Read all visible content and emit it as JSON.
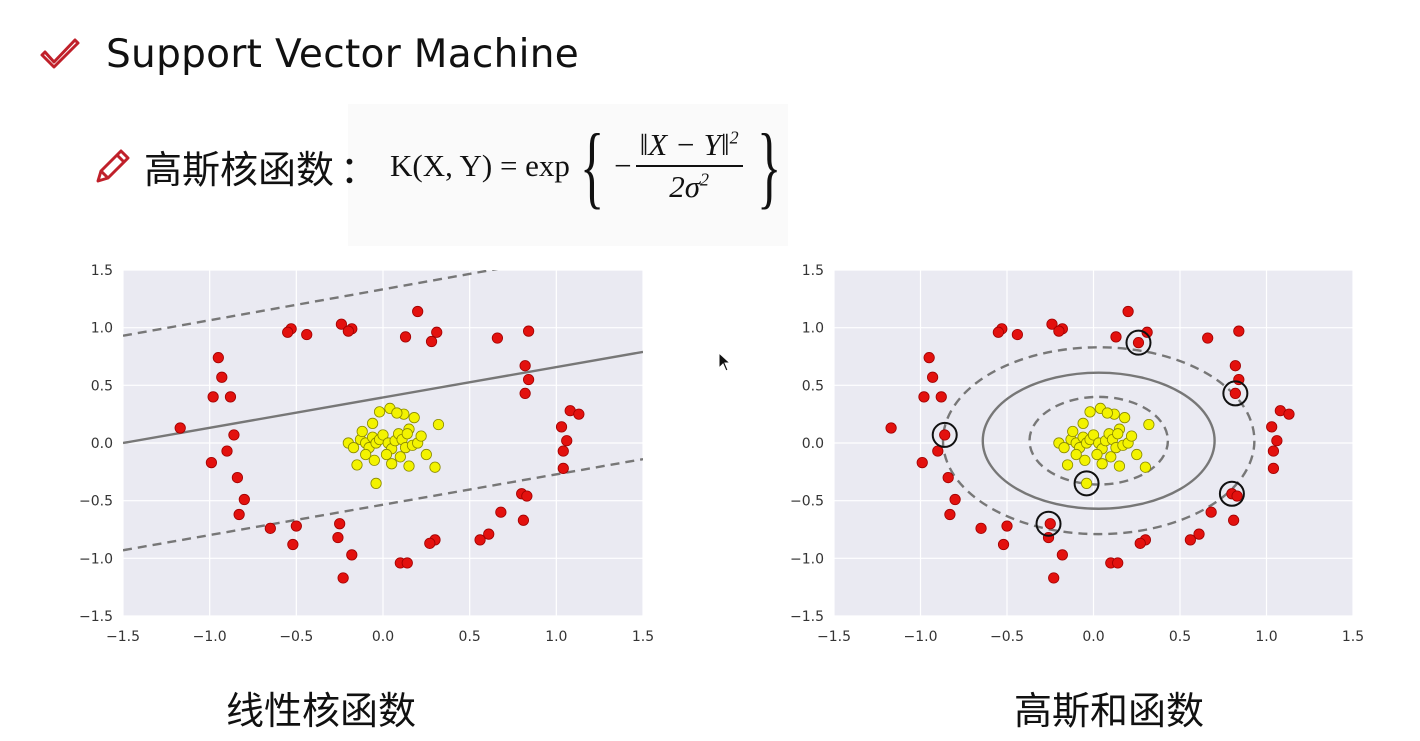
{
  "slide": {
    "title": "Support Vector Machine",
    "kernel_label": "高斯核函数",
    "colon": "：",
    "formula": {
      "lhs": "K(X, Y) = exp",
      "minus": "−",
      "numerator": "‖X − Y‖",
      "exponent": "2",
      "denominator": "2σ",
      "denominator_exponent": "2"
    },
    "icons": [
      "check-icon",
      "pencil-icon",
      "mouse-cursor-icon"
    ],
    "colors": {
      "accent": "#c0202a",
      "plot_bg": "#eaeaf2",
      "red_point": "#e3110e",
      "yellow_point": "#f3f300"
    }
  },
  "chart_data": [
    {
      "type": "scatter",
      "caption": "线性核函数",
      "xlim": [
        -1.5,
        1.5
      ],
      "ylim": [
        -1.5,
        1.5
      ],
      "xticks": [
        "−1.5",
        "−1.0",
        "−0.5",
        "0.0",
        "0.5",
        "1.0",
        "1.5"
      ],
      "yticks": [
        "1.5",
        "1.0",
        "0.5",
        "0.0",
        "−0.5",
        "−1.0",
        "−1.5"
      ],
      "grid": true,
      "decision_lines": [
        {
          "style": "solid",
          "points": [
            [
              -1.5,
              0.0
            ],
            [
              1.5,
              0.79
            ]
          ]
        },
        {
          "style": "dashed",
          "points": [
            [
              -1.5,
              0.93
            ],
            [
              0.7,
              1.52
            ]
          ]
        },
        {
          "style": "dashed",
          "points": [
            [
              -1.5,
              -0.93
            ],
            [
              1.5,
              -0.14
            ]
          ]
        }
      ],
      "series": [
        {
          "color": "red",
          "points": [
            [
              -1.17,
              0.13
            ],
            [
              -0.98,
              0.4
            ],
            [
              -0.95,
              0.74
            ],
            [
              -0.93,
              0.57
            ],
            [
              -0.88,
              0.4
            ],
            [
              -0.9,
              -0.07
            ],
            [
              -0.86,
              0.07
            ],
            [
              -0.99,
              -0.17
            ],
            [
              -0.84,
              -0.3
            ],
            [
              -0.8,
              -0.49
            ],
            [
              -0.83,
              -0.62
            ],
            [
              -0.65,
              -0.74
            ],
            [
              -0.52,
              -0.88
            ],
            [
              -0.5,
              -0.72
            ],
            [
              -0.53,
              0.99
            ],
            [
              -0.55,
              0.96
            ],
            [
              -0.44,
              0.94
            ],
            [
              -0.24,
              1.03
            ],
            [
              -0.18,
              0.99
            ],
            [
              -0.2,
              0.97
            ],
            [
              -0.25,
              -0.7
            ],
            [
              -0.26,
              -0.82
            ],
            [
              -0.18,
              -0.97
            ],
            [
              -0.23,
              -1.17
            ],
            [
              0.1,
              -1.04
            ],
            [
              0.14,
              -1.04
            ],
            [
              0.13,
              0.92
            ],
            [
              0.2,
              1.14
            ],
            [
              0.31,
              0.96
            ],
            [
              0.28,
              0.88
            ],
            [
              0.3,
              -0.84
            ],
            [
              0.27,
              -0.87
            ],
            [
              0.56,
              -0.84
            ],
            [
              0.61,
              -0.79
            ],
            [
              0.68,
              -0.6
            ],
            [
              0.84,
              0.97
            ],
            [
              0.66,
              0.91
            ],
            [
              0.82,
              0.67
            ],
            [
              0.84,
              0.55
            ],
            [
              0.82,
              0.43
            ],
            [
              0.8,
              -0.44
            ],
            [
              0.83,
              -0.46
            ],
            [
              0.81,
              -0.67
            ],
            [
              1.03,
              0.14
            ],
            [
              1.06,
              0.02
            ],
            [
              1.04,
              -0.07
            ],
            [
              1.04,
              -0.22
            ],
            [
              1.08,
              0.28
            ],
            [
              1.13,
              0.25
            ]
          ]
        },
        {
          "color": "yellow",
          "points": [
            [
              -0.2,
              0.0
            ],
            [
              -0.17,
              -0.04
            ],
            [
              -0.13,
              0.03
            ],
            [
              -0.1,
              0.0
            ],
            [
              -0.08,
              -0.04
            ],
            [
              -0.06,
              0.05
            ],
            [
              -0.04,
              0.0
            ],
            [
              -0.02,
              0.03
            ],
            [
              0.0,
              0.07
            ],
            [
              0.03,
              0.0
            ],
            [
              0.05,
              -0.05
            ],
            [
              0.07,
              0.02
            ],
            [
              0.09,
              0.08
            ],
            [
              0.11,
              0.03
            ],
            [
              0.13,
              -0.04
            ],
            [
              0.15,
              0.12
            ],
            [
              0.17,
              -0.02
            ],
            [
              0.2,
              0.0
            ],
            [
              0.22,
              0.06
            ],
            [
              0.25,
              -0.1
            ],
            [
              0.3,
              -0.21
            ],
            [
              0.32,
              0.16
            ],
            [
              0.18,
              0.22
            ],
            [
              0.12,
              0.25
            ],
            [
              0.04,
              0.3
            ],
            [
              0.08,
              0.26
            ],
            [
              -0.02,
              0.27
            ],
            [
              -0.06,
              0.17
            ],
            [
              -0.12,
              0.1
            ],
            [
              -0.1,
              -0.1
            ],
            [
              -0.05,
              -0.15
            ],
            [
              0.05,
              -0.18
            ],
            [
              0.15,
              -0.2
            ],
            [
              -0.15,
              -0.19
            ],
            [
              -0.04,
              -0.35
            ],
            [
              0.02,
              -0.1
            ],
            [
              0.1,
              -0.12
            ],
            [
              0.14,
              0.08
            ]
          ]
        }
      ]
    },
    {
      "type": "scatter",
      "caption": "高斯和函数",
      "xlim": [
        -1.5,
        1.5
      ],
      "ylim": [
        -1.5,
        1.5
      ],
      "xticks": [
        "−1.5",
        "−1.0",
        "−0.5",
        "0.0",
        "0.5",
        "1.0",
        "1.5"
      ],
      "yticks": [
        "1.5",
        "1.0",
        "0.5",
        "0.0",
        "−0.5",
        "−1.0",
        "−1.5"
      ],
      "grid": true,
      "decision_boundary": {
        "style": "solid",
        "center": [
          0.03,
          0.02
        ],
        "rx": 0.67,
        "ry": 0.59
      },
      "margins": [
        {
          "style": "dashed",
          "center": [
            0.03,
            0.02
          ],
          "rx": 0.4,
          "ry": 0.38
        },
        {
          "style": "dashed",
          "center": [
            0.03,
            0.02
          ],
          "rx": 0.9,
          "ry": 0.81
        }
      ],
      "support_vectors": [
        [
          -0.86,
          0.07
        ],
        [
          0.26,
          0.87
        ],
        [
          0.82,
          0.43
        ],
        [
          0.8,
          -0.44
        ],
        [
          -0.26,
          -0.7
        ],
        [
          -0.04,
          -0.35
        ]
      ],
      "series": [
        {
          "color": "red",
          "points": [
            [
              -1.17,
              0.13
            ],
            [
              -0.98,
              0.4
            ],
            [
              -0.95,
              0.74
            ],
            [
              -0.93,
              0.57
            ],
            [
              -0.88,
              0.4
            ],
            [
              -0.9,
              -0.07
            ],
            [
              -0.86,
              0.07
            ],
            [
              -0.99,
              -0.17
            ],
            [
              -0.84,
              -0.3
            ],
            [
              -0.8,
              -0.49
            ],
            [
              -0.83,
              -0.62
            ],
            [
              -0.65,
              -0.74
            ],
            [
              -0.52,
              -0.88
            ],
            [
              -0.5,
              -0.72
            ],
            [
              -0.53,
              0.99
            ],
            [
              -0.55,
              0.96
            ],
            [
              -0.44,
              0.94
            ],
            [
              -0.24,
              1.03
            ],
            [
              -0.18,
              0.99
            ],
            [
              -0.2,
              0.97
            ],
            [
              -0.25,
              -0.7
            ],
            [
              -0.26,
              -0.82
            ],
            [
              -0.18,
              -0.97
            ],
            [
              -0.23,
              -1.17
            ],
            [
              0.1,
              -1.04
            ],
            [
              0.14,
              -1.04
            ],
            [
              0.13,
              0.92
            ],
            [
              0.2,
              1.14
            ],
            [
              0.31,
              0.96
            ],
            [
              0.26,
              0.87
            ],
            [
              0.3,
              -0.84
            ],
            [
              0.27,
              -0.87
            ],
            [
              0.56,
              -0.84
            ],
            [
              0.61,
              -0.79
            ],
            [
              0.68,
              -0.6
            ],
            [
              0.84,
              0.97
            ],
            [
              0.66,
              0.91
            ],
            [
              0.82,
              0.67
            ],
            [
              0.84,
              0.55
            ],
            [
              0.82,
              0.43
            ],
            [
              0.8,
              -0.44
            ],
            [
              0.83,
              -0.46
            ],
            [
              0.81,
              -0.67
            ],
            [
              1.03,
              0.14
            ],
            [
              1.06,
              0.02
            ],
            [
              1.04,
              -0.07
            ],
            [
              1.04,
              -0.22
            ],
            [
              1.08,
              0.28
            ],
            [
              1.13,
              0.25
            ]
          ]
        },
        {
          "color": "yellow",
          "points": [
            [
              -0.2,
              0.0
            ],
            [
              -0.17,
              -0.04
            ],
            [
              -0.13,
              0.03
            ],
            [
              -0.1,
              0.0
            ],
            [
              -0.08,
              -0.04
            ],
            [
              -0.06,
              0.05
            ],
            [
              -0.04,
              0.0
            ],
            [
              -0.02,
              0.03
            ],
            [
              0.0,
              0.07
            ],
            [
              0.03,
              0.0
            ],
            [
              0.05,
              -0.05
            ],
            [
              0.07,
              0.02
            ],
            [
              0.09,
              0.08
            ],
            [
              0.11,
              0.03
            ],
            [
              0.13,
              -0.04
            ],
            [
              0.15,
              0.12
            ],
            [
              0.17,
              -0.02
            ],
            [
              0.2,
              0.0
            ],
            [
              0.22,
              0.06
            ],
            [
              0.25,
              -0.1
            ],
            [
              0.3,
              -0.21
            ],
            [
              0.32,
              0.16
            ],
            [
              0.18,
              0.22
            ],
            [
              0.12,
              0.25
            ],
            [
              0.04,
              0.3
            ],
            [
              0.08,
              0.26
            ],
            [
              -0.02,
              0.27
            ],
            [
              -0.06,
              0.17
            ],
            [
              -0.12,
              0.1
            ],
            [
              -0.1,
              -0.1
            ],
            [
              -0.05,
              -0.15
            ],
            [
              0.05,
              -0.18
            ],
            [
              0.15,
              -0.2
            ],
            [
              -0.15,
              -0.19
            ],
            [
              -0.04,
              -0.35
            ],
            [
              0.02,
              -0.1
            ],
            [
              0.1,
              -0.12
            ],
            [
              0.14,
              0.08
            ]
          ]
        }
      ]
    }
  ]
}
